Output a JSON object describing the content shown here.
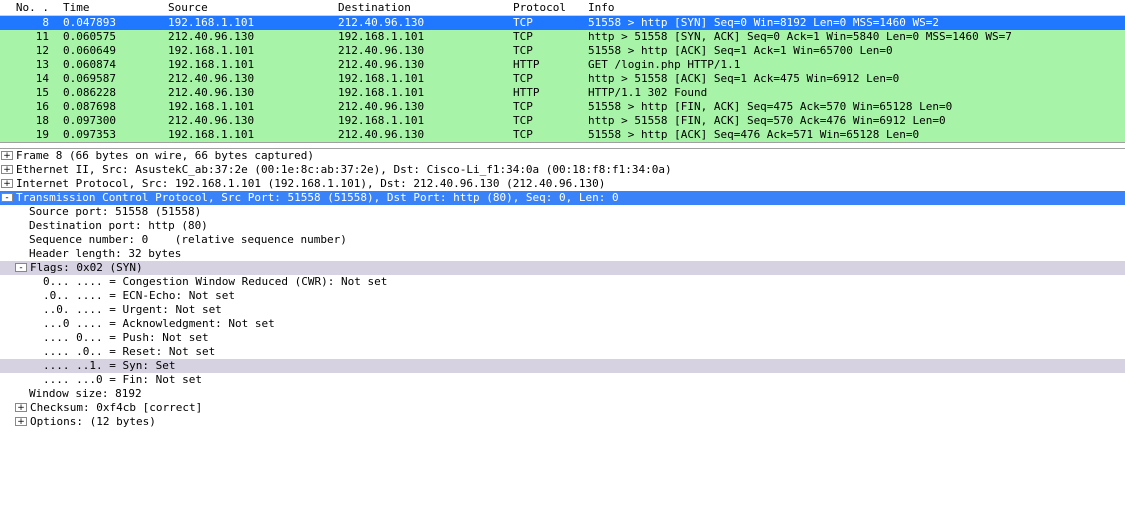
{
  "columns": {
    "no": "No. .",
    "time": "Time",
    "src": "Source",
    "dst": "Destination",
    "proto": "Protocol",
    "info": "Info"
  },
  "row_colors": {
    "selected_bg": "#1f78ff",
    "selected_fg": "#ffffff",
    "green_bg": "#a7f3a7",
    "green_fg": "#000000"
  },
  "packets": [
    {
      "no": "8",
      "time": "0.047893",
      "src": "192.168.1.101",
      "dst": "212.40.96.130",
      "proto": "TCP",
      "info": "51558 > http [SYN] Seq=0 Win=8192 Len=0 MSS=1460 WS=2",
      "style": "selected"
    },
    {
      "no": "11",
      "time": "0.060575",
      "src": "212.40.96.130",
      "dst": "192.168.1.101",
      "proto": "TCP",
      "info": "http > 51558 [SYN, ACK] Seq=0 Ack=1 Win=5840 Len=0 MSS=1460 WS=7",
      "style": "green"
    },
    {
      "no": "12",
      "time": "0.060649",
      "src": "192.168.1.101",
      "dst": "212.40.96.130",
      "proto": "TCP",
      "info": "51558 > http [ACK] Seq=1 Ack=1 Win=65700 Len=0",
      "style": "green"
    },
    {
      "no": "13",
      "time": "0.060874",
      "src": "192.168.1.101",
      "dst": "212.40.96.130",
      "proto": "HTTP",
      "info": "GET /login.php HTTP/1.1",
      "style": "green"
    },
    {
      "no": "14",
      "time": "0.069587",
      "src": "212.40.96.130",
      "dst": "192.168.1.101",
      "proto": "TCP",
      "info": "http > 51558 [ACK] Seq=1 Ack=475 Win=6912 Len=0",
      "style": "green"
    },
    {
      "no": "15",
      "time": "0.086228",
      "src": "212.40.96.130",
      "dst": "192.168.1.101",
      "proto": "HTTP",
      "info": "HTTP/1.1 302 Found",
      "style": "green"
    },
    {
      "no": "16",
      "time": "0.087698",
      "src": "192.168.1.101",
      "dst": "212.40.96.130",
      "proto": "TCP",
      "info": "51558 > http [FIN, ACK] Seq=475 Ack=570 Win=65128 Len=0",
      "style": "green"
    },
    {
      "no": "18",
      "time": "0.097300",
      "src": "212.40.96.130",
      "dst": "192.168.1.101",
      "proto": "TCP",
      "info": "http > 51558 [FIN, ACK] Seq=570 Ack=476 Win=6912 Len=0",
      "style": "green"
    },
    {
      "no": "19",
      "time": "0.097353",
      "src": "192.168.1.101",
      "dst": "212.40.96.130",
      "proto": "TCP",
      "info": "51558 > http [ACK] Seq=476 Ack=571 Win=65128 Len=0",
      "style": "green"
    }
  ],
  "details": [
    {
      "indent": 0,
      "expander": "+",
      "text": "Frame 8 (66 bytes on wire, 66 bytes captured)"
    },
    {
      "indent": 0,
      "expander": "+",
      "text": "Ethernet II, Src: AsustekC_ab:37:2e (00:1e:8c:ab:37:2e), Dst: Cisco-Li_f1:34:0a (00:18:f8:f1:34:0a)"
    },
    {
      "indent": 0,
      "expander": "+",
      "text": "Internet Protocol, Src: 192.168.1.101 (192.168.1.101), Dst: 212.40.96.130 (212.40.96.130)"
    },
    {
      "indent": 0,
      "expander": "-",
      "text": "Transmission Control Protocol, Src Port: 51558 (51558), Dst Port: http (80), Seq: 0, Len: 0",
      "highlight": "blue"
    },
    {
      "indent": 2,
      "expander": "",
      "text": "Source port: 51558 (51558)"
    },
    {
      "indent": 2,
      "expander": "",
      "text": "Destination port: http (80)"
    },
    {
      "indent": 2,
      "expander": "",
      "text": "Sequence number: 0    (relative sequence number)"
    },
    {
      "indent": 2,
      "expander": "",
      "text": "Header length: 32 bytes"
    },
    {
      "indent": 1,
      "expander": "-",
      "text": "Flags: 0x02 (SYN)",
      "highlight": "gray"
    },
    {
      "indent": 3,
      "expander": "",
      "text": "0... .... = Congestion Window Reduced (CWR): Not set"
    },
    {
      "indent": 3,
      "expander": "",
      "text": ".0.. .... = ECN-Echo: Not set"
    },
    {
      "indent": 3,
      "expander": "",
      "text": "..0. .... = Urgent: Not set"
    },
    {
      "indent": 3,
      "expander": "",
      "text": "...0 .... = Acknowledgment: Not set"
    },
    {
      "indent": 3,
      "expander": "",
      "text": ".... 0... = Push: Not set"
    },
    {
      "indent": 3,
      "expander": "",
      "text": ".... .0.. = Reset: Not set"
    },
    {
      "indent": 3,
      "expander": "",
      "text": ".... ..1. = Syn: Set",
      "highlight": "gray"
    },
    {
      "indent": 3,
      "expander": "",
      "text": ".... ...0 = Fin: Not set"
    },
    {
      "indent": 2,
      "expander": "",
      "text": "Window size: 8192"
    },
    {
      "indent": 1,
      "expander": "+",
      "text": "Checksum: 0xf4cb [correct]"
    },
    {
      "indent": 1,
      "expander": "+",
      "text": "Options: (12 bytes)"
    }
  ]
}
